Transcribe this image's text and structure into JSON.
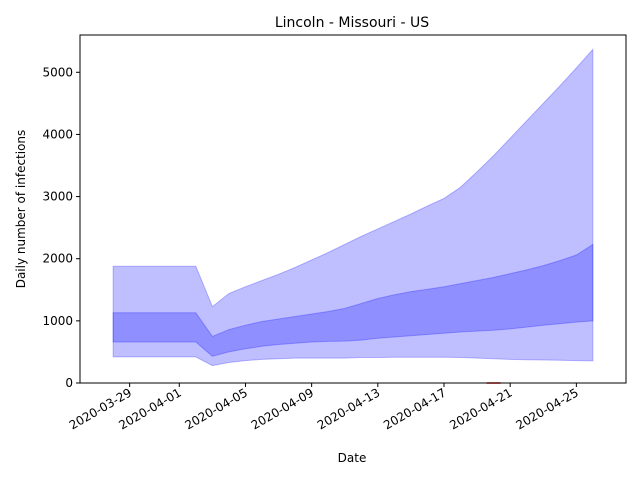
{
  "chart_data": {
    "type": "area",
    "title": "Lincoln - Missouri - US",
    "xlabel": "Date",
    "ylabel": "Daily number of infections",
    "x_range": [
      "2020-03-26",
      "2020-04-28"
    ],
    "ylim": [
      0,
      5600
    ],
    "grid": false,
    "legend": "none",
    "x_ticks": [
      "2020-03-29",
      "2020-04-01",
      "2020-04-05",
      "2020-04-09",
      "2020-04-13",
      "2020-04-17",
      "2020-04-21",
      "2020-04-25"
    ],
    "y_ticks": [
      0,
      1000,
      2000,
      3000,
      4000,
      5000
    ],
    "dates": [
      "2020-03-28",
      "2020-03-29",
      "2020-03-30",
      "2020-03-31",
      "2020-04-01",
      "2020-04-02",
      "2020-04-03",
      "2020-04-04",
      "2020-04-05",
      "2020-04-06",
      "2020-04-07",
      "2020-04-08",
      "2020-04-09",
      "2020-04-10",
      "2020-04-11",
      "2020-04-12",
      "2020-04-13",
      "2020-04-14",
      "2020-04-15",
      "2020-04-16",
      "2020-04-17",
      "2020-04-18",
      "2020-04-19",
      "2020-04-20",
      "2020-04-21",
      "2020-04-22",
      "2020-04-23",
      "2020-04-24",
      "2020-04-25",
      "2020-04-26"
    ],
    "bands": [
      {
        "color": "#0000ff",
        "opacity": 0.25,
        "lower": [
          420,
          420,
          420,
          420,
          420,
          420,
          280,
          330,
          360,
          380,
          390,
          400,
          400,
          400,
          400,
          410,
          410,
          415,
          415,
          415,
          415,
          410,
          400,
          390,
          380,
          375,
          370,
          365,
          360,
          355
        ],
        "upper": [
          1880,
          1880,
          1880,
          1880,
          1880,
          1880,
          1230,
          1440,
          1550,
          1650,
          1750,
          1860,
          1980,
          2100,
          2230,
          2360,
          2480,
          2600,
          2720,
          2850,
          2970,
          3150,
          3400,
          3660,
          3940,
          4220,
          4500,
          4780,
          5070,
          5370
        ]
      },
      {
        "color": "#0000ff",
        "opacity": 0.25,
        "lower": [
          660,
          660,
          660,
          660,
          660,
          660,
          430,
          500,
          550,
          590,
          620,
          640,
          660,
          670,
          675,
          690,
          720,
          740,
          760,
          780,
          800,
          820,
          835,
          850,
          870,
          900,
          930,
          955,
          980,
          1000
        ],
        "upper": [
          1130,
          1130,
          1130,
          1130,
          1130,
          1130,
          750,
          860,
          930,
          990,
          1030,
          1070,
          1110,
          1150,
          1200,
          1280,
          1360,
          1420,
          1470,
          1510,
          1550,
          1600,
          1650,
          1700,
          1760,
          1820,
          1890,
          1970,
          2060,
          2230
        ]
      }
    ],
    "red_marker": {
      "date": "2020-04-20",
      "value": 0,
      "color": "#ff0000"
    }
  }
}
